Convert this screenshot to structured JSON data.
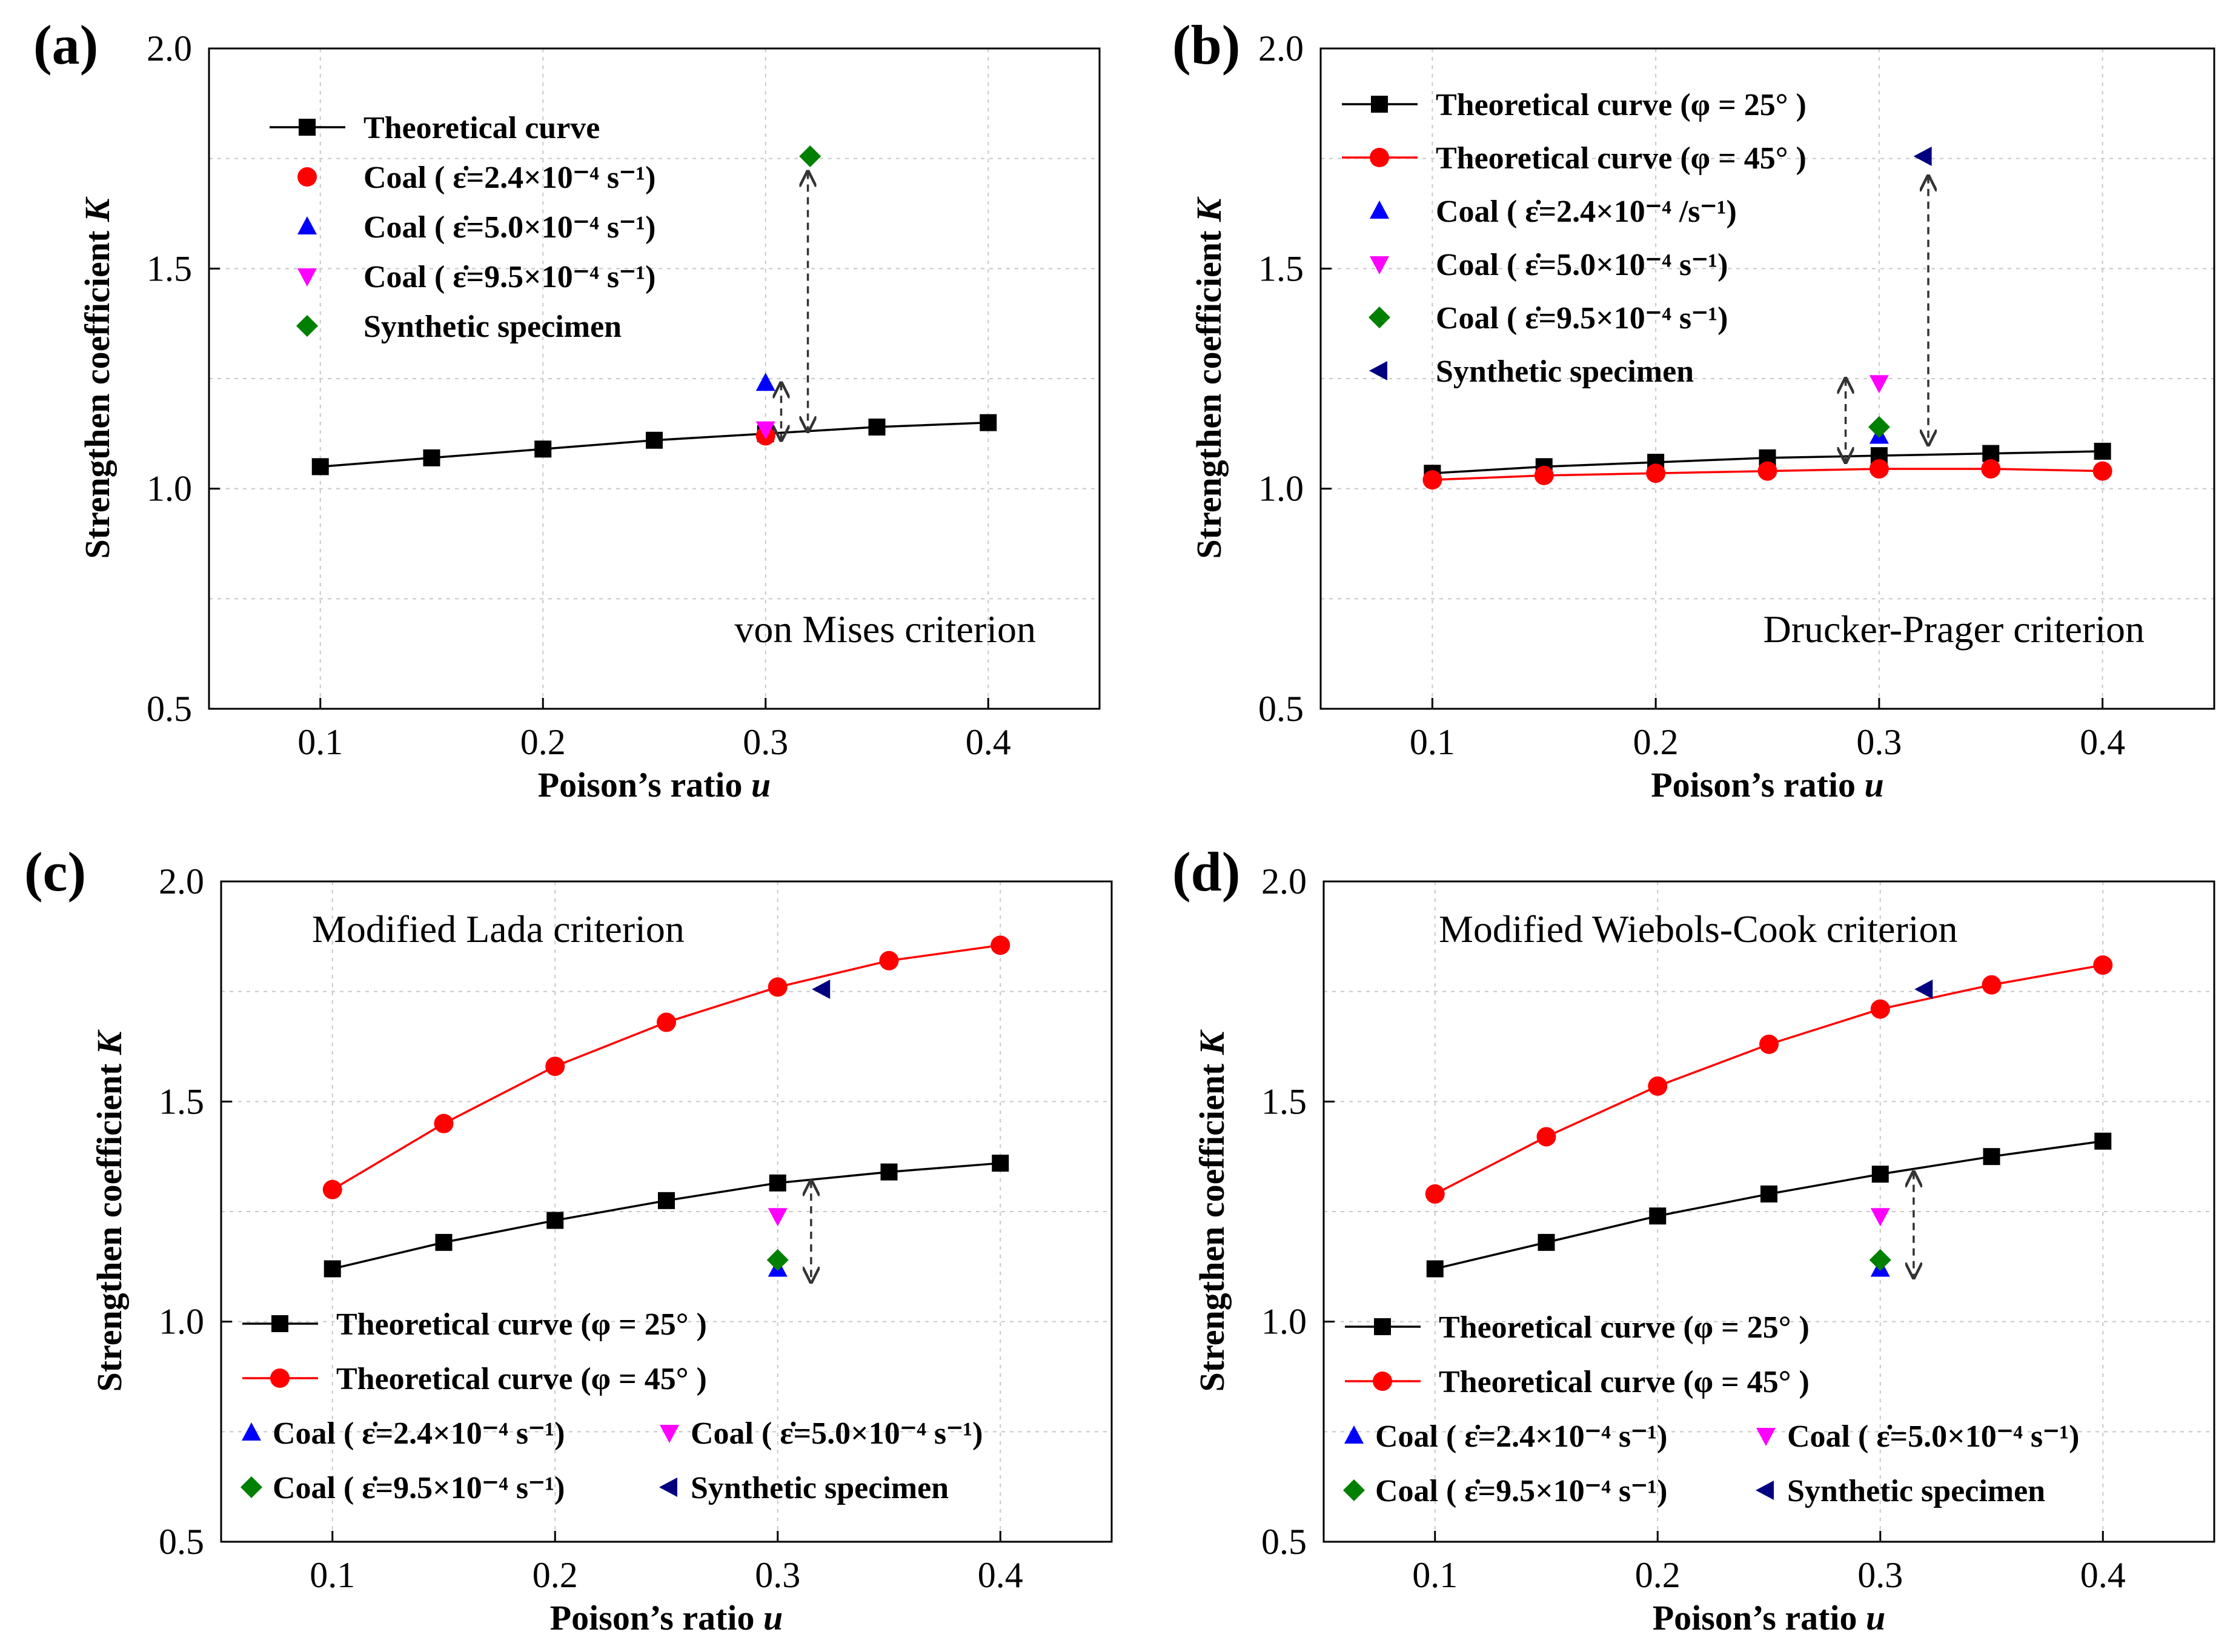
{
  "chart_data": [
    {
      "type": "line",
      "panel": "(a)",
      "annotation": "von Mises criterion",
      "xlabel": "Poison’s ratio",
      "xlabel_var": "u",
      "ylabel": "Strengthen coefficient",
      "ylabel_var": "K",
      "xlim": [
        0.05,
        0.45
      ],
      "ylim": [
        0.5,
        2.0
      ],
      "xticks": [
        "0.1",
        "0.2",
        "0.3",
        "0.4"
      ],
      "yticks": [
        "0.5",
        "1.0",
        "1.5",
        "2.0"
      ],
      "grid": true,
      "legend_position": "top-left",
      "series": [
        {
          "name": "Theoretical curve",
          "color": "#000000",
          "marker": "square",
          "x": [
            0.1,
            0.15,
            0.2,
            0.25,
            0.3,
            0.35,
            0.4
          ],
          "y": [
            1.05,
            1.07,
            1.09,
            1.11,
            1.125,
            1.14,
            1.15
          ]
        }
      ],
      "points": [
        {
          "name": "Coal ( ε̇=2.4×10⁻⁴ s⁻¹)",
          "color": "#ff0000",
          "marker": "circle",
          "x": 0.3,
          "y": 1.12
        },
        {
          "name": "Coal ( ε̇=5.0×10⁻⁴ s⁻¹)",
          "color": "#0000ff",
          "marker": "triangle-up",
          "x": 0.3,
          "y": 1.24
        },
        {
          "name": "Coal ( ε̇=9.5×10⁻⁴ s⁻¹)",
          "color": "#ff00ff",
          "marker": "triangle-down",
          "x": 0.3,
          "y": 1.135
        },
        {
          "name": "Synthetic specimen",
          "color": "#008000",
          "marker": "diamond",
          "x": 0.32,
          "y": 1.755
        }
      ],
      "arrows": [
        {
          "x": 0.307,
          "y_from": 1.24,
          "y_to": 1.11
        },
        {
          "x": 0.319,
          "y_from": 1.72,
          "y_to": 1.13
        }
      ]
    },
    {
      "type": "line",
      "panel": "(b)",
      "annotation": "Drucker-Prager criterion",
      "xlabel": "Poison’s ratio",
      "xlabel_var": "u",
      "ylabel": "Strengthen coefficient",
      "ylabel_var": "K",
      "xlim": [
        0.05,
        0.45
      ],
      "ylim": [
        0.5,
        2.0
      ],
      "xticks": [
        "0.1",
        "0.2",
        "0.3",
        "0.4"
      ],
      "yticks": [
        "0.5",
        "1.0",
        "1.5",
        "2.0"
      ],
      "grid": true,
      "legend_position": "top-left",
      "series": [
        {
          "name": "Theoretical curve (φ = 25° )",
          "color": "#000000",
          "marker": "square",
          "x": [
            0.1,
            0.15,
            0.2,
            0.25,
            0.3,
            0.35,
            0.4
          ],
          "y": [
            1.035,
            1.05,
            1.06,
            1.07,
            1.075,
            1.08,
            1.085
          ]
        },
        {
          "name": "Theoretical curve (φ = 45° )",
          "color": "#ff0000",
          "marker": "circle",
          "x": [
            0.1,
            0.15,
            0.2,
            0.25,
            0.3,
            0.35,
            0.4
          ],
          "y": [
            1.02,
            1.03,
            1.035,
            1.04,
            1.045,
            1.045,
            1.04
          ]
        }
      ],
      "points": [
        {
          "name": "Coal ( ε̇=2.4×10⁻⁴ /s⁻¹)",
          "color": "#0000ff",
          "marker": "triangle-up",
          "x": 0.3,
          "y": 1.12
        },
        {
          "name": "Coal ( ε̇=5.0×10⁻⁴ s⁻¹)",
          "color": "#ff00ff",
          "marker": "triangle-down",
          "x": 0.3,
          "y": 1.24
        },
        {
          "name": "Coal ( ε̇=9.5×10⁻⁴ s⁻¹)",
          "color": "#008000",
          "marker": "diamond",
          "x": 0.3,
          "y": 1.14
        },
        {
          "name": "Synthetic specimen",
          "color": "#000080",
          "marker": "triangle-left",
          "x": 0.32,
          "y": 1.755
        }
      ],
      "arrows": [
        {
          "x": 0.285,
          "y_from": 1.25,
          "y_to": 1.06
        },
        {
          "x": 0.322,
          "y_from": 1.71,
          "y_to": 1.1
        }
      ]
    },
    {
      "type": "line",
      "panel": "(c)",
      "annotation": "Modified Lada criterion",
      "xlabel": "Poison’s ratio",
      "xlabel_var": "u",
      "ylabel": "Strengthen coefficient",
      "ylabel_var": "K",
      "xlim": [
        0.05,
        0.45
      ],
      "ylim": [
        0.5,
        2.0
      ],
      "xticks": [
        "0.1",
        "0.2",
        "0.3",
        "0.4"
      ],
      "yticks": [
        "0.5",
        "1.0",
        "1.5",
        "2.0"
      ],
      "grid": true,
      "legend_position": "bottom-left",
      "series": [
        {
          "name": "Theoretical curve (φ = 25° )",
          "color": "#000000",
          "marker": "square",
          "x": [
            0.1,
            0.15,
            0.2,
            0.25,
            0.3,
            0.35,
            0.4
          ],
          "y": [
            1.12,
            1.18,
            1.23,
            1.275,
            1.315,
            1.34,
            1.36
          ]
        },
        {
          "name": "Theoretical curve (φ = 45° )",
          "color": "#ff0000",
          "marker": "circle",
          "x": [
            0.1,
            0.15,
            0.2,
            0.25,
            0.3,
            0.35,
            0.4
          ],
          "y": [
            1.3,
            1.45,
            1.58,
            1.68,
            1.76,
            1.82,
            1.855
          ]
        }
      ],
      "points": [
        {
          "name": "Coal ( ε̇=2.4×10⁻⁴ s⁻¹)",
          "color": "#0000ff",
          "marker": "triangle-up",
          "x": 0.3,
          "y": 1.12
        },
        {
          "name": "Coal ( ε̇=5.0×10⁻⁴ s⁻¹)",
          "color": "#ff00ff",
          "marker": "triangle-down",
          "x": 0.3,
          "y": 1.24
        },
        {
          "name": "Coal ( ε̇=9.5×10⁻⁴ s⁻¹)",
          "color": "#008000",
          "marker": "diamond",
          "x": 0.3,
          "y": 1.14
        },
        {
          "name": "Synthetic specimen",
          "color": "#000080",
          "marker": "triangle-left",
          "x": 0.32,
          "y": 1.755
        }
      ],
      "arrows": [
        {
          "x": 0.315,
          "y_from": 1.32,
          "y_to": 1.09
        }
      ]
    },
    {
      "type": "line",
      "panel": "(d)",
      "annotation": "Modified Wiebols-Cook criterion",
      "xlabel": "Poison’s ratio",
      "xlabel_var": "u",
      "ylabel": "Strengthen coefficient",
      "ylabel_var": "K",
      "xlim": [
        0.05,
        0.45
      ],
      "ylim": [
        0.5,
        2.0
      ],
      "xticks": [
        "0.1",
        "0.2",
        "0.3",
        "0.4"
      ],
      "yticks": [
        "0.5",
        "1.0",
        "1.5",
        "2.0"
      ],
      "grid": true,
      "legend_position": "bottom-left",
      "series": [
        {
          "name": "Theoretical curve (φ = 25° )",
          "color": "#000000",
          "marker": "square",
          "x": [
            0.1,
            0.15,
            0.2,
            0.25,
            0.3,
            0.35,
            0.4
          ],
          "y": [
            1.12,
            1.18,
            1.24,
            1.29,
            1.335,
            1.375,
            1.41
          ]
        },
        {
          "name": "Theoretical curve (φ = 45° )",
          "color": "#ff0000",
          "marker": "circle",
          "x": [
            0.1,
            0.15,
            0.2,
            0.25,
            0.3,
            0.35,
            0.4
          ],
          "y": [
            1.29,
            1.42,
            1.535,
            1.63,
            1.71,
            1.765,
            1.81
          ]
        }
      ],
      "points": [
        {
          "name": "Coal ( ε̇=2.4×10⁻⁴ s⁻¹)",
          "color": "#0000ff",
          "marker": "triangle-up",
          "x": 0.3,
          "y": 1.12
        },
        {
          "name": "Coal ( ε̇=5.0×10⁻⁴ s⁻¹)",
          "color": "#ff00ff",
          "marker": "triangle-down",
          "x": 0.3,
          "y": 1.24
        },
        {
          "name": "Coal ( ε̇=9.5×10⁻⁴ s⁻¹)",
          "color": "#008000",
          "marker": "diamond",
          "x": 0.3,
          "y": 1.14
        },
        {
          "name": "Synthetic specimen",
          "color": "#000080",
          "marker": "triangle-left",
          "x": 0.32,
          "y": 1.755
        }
      ],
      "arrows": [
        {
          "x": 0.315,
          "y_from": 1.34,
          "y_to": 1.1
        }
      ]
    }
  ]
}
